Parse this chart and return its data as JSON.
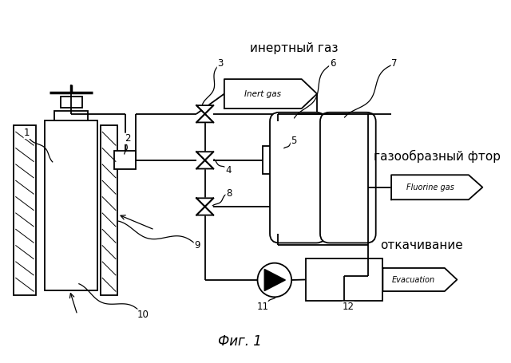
{
  "title": "Фиг. 1",
  "bg_color": "#ffffff",
  "russian_inert": "инертный газ",
  "english_inert": "Inert gas",
  "russian_fluorine": "газообразный фтор",
  "english_fluorine": "Fluorine gas",
  "russian_evacuation": "откачивание",
  "english_evacuation": "Evacuation"
}
